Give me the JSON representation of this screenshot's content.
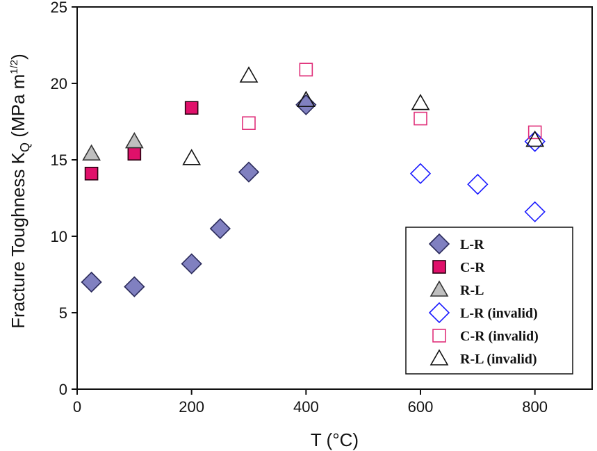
{
  "chart_data": {
    "type": "scatter",
    "xlabel": "T (°C)",
    "ylabel": {
      "main": "Fracture Toughness K",
      "subscript": "Q",
      "unit_open": " (MPa m",
      "unit_sup": "1/2",
      "unit_close": ")"
    },
    "xlim": [
      0,
      900
    ],
    "ylim": [
      0,
      25
    ],
    "x_ticks": [
      0,
      200,
      400,
      600,
      800
    ],
    "y_ticks": [
      0,
      5,
      10,
      15,
      20,
      25
    ],
    "x_tick_labels": [
      "0",
      "200",
      "400",
      "600",
      "800"
    ],
    "y_tick_labels": [
      "0",
      "5",
      "10",
      "15",
      "20",
      "25"
    ],
    "grid": false,
    "legend_position": "bottom-right",
    "series": [
      {
        "name": "L-R",
        "marker": "diamond",
        "filled": true,
        "fill": "#8080c0",
        "stroke": "#2a2a5a",
        "points": [
          [
            25,
            7.0
          ],
          [
            100,
            6.7
          ],
          [
            200,
            8.2
          ],
          [
            250,
            10.5
          ],
          [
            300,
            14.2
          ],
          [
            400,
            18.6
          ]
        ]
      },
      {
        "name": "C-R",
        "marker": "square",
        "filled": true,
        "fill": "#e0106a",
        "stroke": "#2a0010",
        "points": [
          [
            25,
            14.1
          ],
          [
            100,
            15.4
          ],
          [
            200,
            18.4
          ]
        ]
      },
      {
        "name": "R-L",
        "marker": "triangle",
        "filled": true,
        "fill": "#bfbfbf",
        "stroke": "#333333",
        "points": [
          [
            25,
            15.4
          ],
          [
            100,
            16.2
          ]
        ]
      },
      {
        "name": "L-R (invalid)",
        "marker": "diamond",
        "filled": false,
        "fill": "none",
        "stroke": "#1a1aff",
        "points": [
          [
            600,
            14.1
          ],
          [
            700,
            13.4
          ],
          [
            800,
            11.6
          ],
          [
            800,
            16.2
          ]
        ]
      },
      {
        "name": "C-R (invalid)",
        "marker": "square",
        "filled": false,
        "fill": "none",
        "stroke": "#e0307a",
        "points": [
          [
            300,
            17.4
          ],
          [
            400,
            20.9
          ],
          [
            600,
            17.7
          ],
          [
            800,
            16.8
          ]
        ]
      },
      {
        "name": "R-L (invalid)",
        "marker": "triangle",
        "filled": false,
        "fill": "none",
        "stroke": "#111111",
        "points": [
          [
            200,
            15.1
          ],
          [
            300,
            20.5
          ],
          [
            400,
            18.9
          ],
          [
            600,
            18.7
          ],
          [
            800,
            16.3
          ]
        ]
      }
    ]
  }
}
